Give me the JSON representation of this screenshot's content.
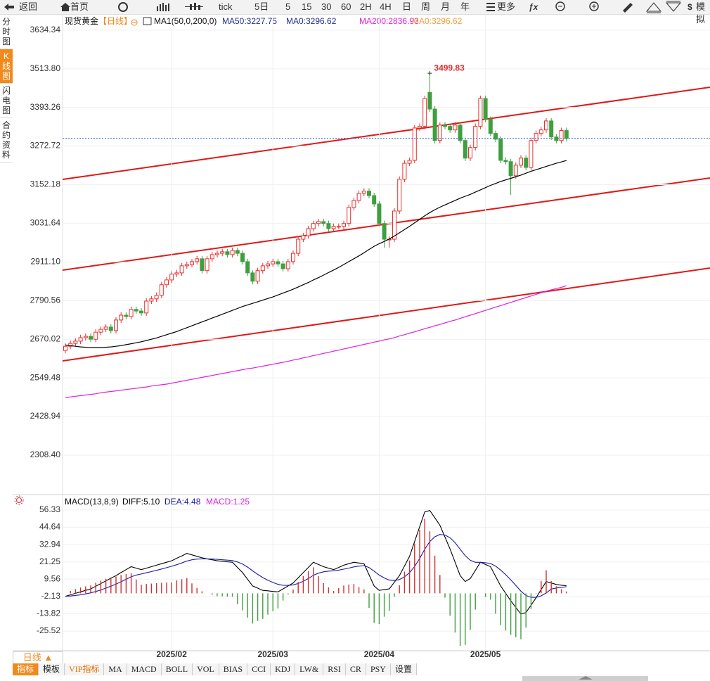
{
  "toolbar": {
    "items": [
      "返回",
      "首页",
      "tick",
      "5日",
      "5",
      "15",
      "30",
      "60",
      "2H",
      "4H",
      "日",
      "周",
      "月",
      "年",
      "更多",
      "模拟"
    ]
  },
  "side_tabs": [
    "分时图",
    "K线图",
    "闪电图",
    "合约资料"
  ],
  "period_button": "日线 ▲",
  "indicator_tabs": [
    "指标",
    "模板",
    "VIP指标",
    "MA",
    "MACD",
    "BOLL",
    "VOL",
    "BIAS",
    "CCI",
    "KDJ",
    "LW&",
    "RSI",
    "CR",
    "PSY",
    "设置"
  ],
  "chart_data": [
    {
      "type": "candlestick",
      "title": "现货黄金",
      "period": "【日线】",
      "indicator": "MA1(50,0,200,0)",
      "categories": [
        null,
        null,
        null,
        null,
        null,
        null,
        null,
        null,
        null,
        null,
        null,
        null,
        null,
        null,
        null,
        null,
        null,
        null,
        null,
        null,
        null,
        "2025/02",
        null,
        null,
        null,
        null,
        null,
        null,
        null,
        null,
        null,
        null,
        null,
        null,
        null,
        null,
        null,
        null,
        null,
        null,
        null,
        "2025/03",
        null,
        null,
        null,
        null,
        null,
        null,
        null,
        null,
        null,
        null,
        null,
        null,
        null,
        null,
        null,
        null,
        null,
        null,
        null,
        null,
        "2025/04",
        null,
        null,
        null,
        null,
        null,
        null,
        null,
        null,
        null,
        null,
        null,
        null,
        null,
        null,
        null,
        null,
        null,
        null,
        null,
        null,
        "2025/05",
        null,
        null,
        null,
        null,
        null,
        null,
        null,
        null,
        null,
        null,
        null,
        null,
        null,
        null,
        null,
        null
      ],
      "open": [
        2635,
        2648,
        2657,
        2664,
        2675,
        2679,
        2670,
        2692,
        2701,
        2708,
        2697,
        2730,
        2745,
        2741,
        2763,
        2758,
        2752,
        2789,
        2796,
        2807,
        2840,
        2855,
        2873,
        2877,
        2899,
        2903,
        2912,
        2921,
        2884,
        2921,
        2934,
        2938,
        2943,
        2934,
        2947,
        2938,
        2912,
        2877,
        2851,
        2884,
        2899,
        2905,
        2912,
        2905,
        2890,
        2912,
        2938,
        2982,
        2993,
        3015,
        3031,
        3037,
        3031,
        3015,
        3022,
        3022,
        3031,
        3081,
        3103,
        3125,
        3132,
        3118,
        3092,
        3031,
        2982,
        2982,
        3070,
        3169,
        3219,
        3228,
        3329,
        3334,
        3440,
        3388,
        3290,
        3338,
        3334,
        3323,
        3338,
        3290,
        3235,
        3268,
        3334,
        3421,
        3356,
        3312,
        3294,
        3228,
        3224,
        3180,
        3213,
        3235,
        3206,
        3290,
        3312,
        3323,
        3351,
        3301,
        3290,
        3321
      ],
      "high": [
        2657,
        2666,
        2673,
        2684,
        2688,
        2688,
        2701,
        2710,
        2717,
        2717,
        2739,
        2754,
        2754,
        2772,
        2772,
        2767,
        2798,
        2805,
        2816,
        2849,
        2864,
        2882,
        2886,
        2908,
        2912,
        2921,
        2930,
        2930,
        2930,
        2943,
        2947,
        2952,
        2952,
        2956,
        2956,
        2947,
        2921,
        2886,
        2893,
        2908,
        2914,
        2921,
        2921,
        2914,
        2921,
        2947,
        2991,
        3002,
        3024,
        3040,
        3046,
        3046,
        3040,
        3031,
        3031,
        3040,
        3090,
        3112,
        3134,
        3141,
        3141,
        3127,
        3101,
        3040,
        2991,
        3079,
        3178,
        3228,
        3237,
        3338,
        3343,
        3430,
        3499.83,
        3397,
        3347,
        3347,
        3343,
        3347,
        3347,
        3299,
        3277,
        3343,
        3430,
        3430,
        3365,
        3321,
        3303,
        3237,
        3233,
        3222,
        3244,
        3244,
        3299,
        3321,
        3332,
        3360,
        3360,
        3310,
        3330,
        3330
      ],
      "low": [
        2626,
        2639,
        2648,
        2655,
        2666,
        2661,
        2661,
        2683,
        2692,
        2688,
        2688,
        2721,
        2732,
        2732,
        2749,
        2743,
        2743,
        2780,
        2787,
        2798,
        2831,
        2846,
        2864,
        2868,
        2890,
        2894,
        2903,
        2875,
        2875,
        2912,
        2925,
        2929,
        2925,
        2925,
        2929,
        2903,
        2868,
        2842,
        2842,
        2875,
        2890,
        2896,
        2896,
        2881,
        2881,
        2903,
        2929,
        2973,
        2984,
        3006,
        3022,
        3022,
        3006,
        3006,
        3013,
        3013,
        3022,
        3072,
        3094,
        3116,
        3109,
        3083,
        3022,
        2956,
        2956,
        2973,
        3061,
        3160,
        3210,
        3219,
        3320,
        3325,
        3379,
        3281,
        3281,
        3325,
        3314,
        3314,
        3281,
        3226,
        3226,
        3259,
        3325,
        3347,
        3303,
        3285,
        3219,
        3215,
        3120,
        3171,
        3204,
        3197,
        3197,
        3281,
        3303,
        3314,
        3292,
        3281,
        3281,
        3287
      ],
      "close": [
        2648,
        2657,
        2664,
        2675,
        2679,
        2670,
        2692,
        2701,
        2708,
        2697,
        2730,
        2745,
        2741,
        2763,
        2758,
        2752,
        2789,
        2796,
        2807,
        2840,
        2855,
        2873,
        2877,
        2899,
        2903,
        2912,
        2921,
        2884,
        2921,
        2934,
        2938,
        2943,
        2934,
        2947,
        2938,
        2912,
        2877,
        2851,
        2884,
        2899,
        2905,
        2912,
        2905,
        2890,
        2912,
        2938,
        2982,
        2993,
        3015,
        3031,
        3037,
        3031,
        3015,
        3022,
        3022,
        3031,
        3081,
        3103,
        3125,
        3132,
        3118,
        3092,
        3031,
        2982,
        2982,
        3070,
        3169,
        3219,
        3228,
        3329,
        3334,
        3421,
        3388,
        3290,
        3338,
        3334,
        3323,
        3338,
        3290,
        3235,
        3268,
        3334,
        3421,
        3356,
        3312,
        3294,
        3228,
        3224,
        3180,
        3213,
        3235,
        3206,
        3290,
        3312,
        3323,
        3351,
        3301,
        3290,
        3321,
        3296.62
      ],
      "up_color": "#e8312f",
      "down_color": "#3f9f3f",
      "series": [
        {
          "name": "MA50:3227.75",
          "color": "#000000",
          "label_color": "#1f2f8f",
          "values": [
            2652,
            2650,
            2648,
            2646,
            2645,
            2644,
            2644,
            2644,
            2645,
            2646,
            2648,
            2650,
            2653,
            2656,
            2659,
            2662,
            2666,
            2670,
            2674,
            2679,
            2684,
            2689,
            2694,
            2700,
            2706,
            2712,
            2718,
            2724,
            2730,
            2736,
            2742,
            2748,
            2754,
            2760,
            2766,
            2772,
            2777,
            2782,
            2787,
            2792,
            2797,
            2802,
            2808,
            2814,
            2820,
            2826,
            2833,
            2840,
            2847,
            2855,
            2862,
            2870,
            2878,
            2886,
            2894,
            2903,
            2912,
            2921,
            2930,
            2940,
            2950,
            2960,
            2968,
            2975,
            2983,
            2992,
            3002,
            3012,
            3022,
            3033,
            3044,
            3055,
            3065,
            3074,
            3082,
            3089,
            3096,
            3103,
            3110,
            3116,
            3122,
            3129,
            3136,
            3143,
            3150,
            3156,
            3162,
            3167,
            3172,
            3177,
            3182,
            3188,
            3194,
            3199,
            3204,
            3209,
            3214,
            3219,
            3223,
            3227.75
          ]
        },
        {
          "name": "MA200:2836.93",
          "color": "#e020e0",
          "label_color": "#e020e0",
          "values": [
            2488,
            2490,
            2492,
            2494,
            2496,
            2498,
            2500,
            2503,
            2505,
            2507,
            2509,
            2511,
            2513,
            2515,
            2517,
            2519,
            2521,
            2524,
            2526,
            2528,
            2530,
            2533,
            2536,
            2539,
            2542,
            2545,
            2548,
            2551,
            2554,
            2557,
            2560,
            2563,
            2566,
            2569,
            2572,
            2575,
            2578,
            2580,
            2583,
            2586,
            2589,
            2592,
            2595,
            2598,
            2601,
            2605,
            2608,
            2612,
            2615,
            2619,
            2622,
            2626,
            2629,
            2633,
            2636,
            2640,
            2643,
            2647,
            2650,
            2654,
            2657,
            2661,
            2664,
            2668,
            2671,
            2675,
            2680,
            2684,
            2689,
            2693,
            2698,
            2703,
            2707,
            2712,
            2716,
            2721,
            2726,
            2730,
            2735,
            2740,
            2745,
            2750,
            2755,
            2760,
            2765,
            2770,
            2775,
            2780,
            2785,
            2790,
            2795,
            2800,
            2805,
            2810,
            2815,
            2820,
            2824,
            2828,
            2832,
            2836.93
          ]
        }
      ],
      "extra_labels": [
        {
          "text": "MA0:3296.62",
          "color": "#1f2f8f"
        },
        {
          "text": "MA0:3296.62",
          "color": "#f0a040"
        }
      ],
      "ylim": [
        2192,
        3680
      ],
      "yticks": [
        3634.34,
        {
          "value": 3513.8,
          "label": "3513.80"
        },
        3393.26,
        3272.72,
        3152.18,
        3031.64,
        {
          "value": 2911.1,
          "label": "2911.10"
        },
        2790.56,
        2670.02,
        2549.48,
        2428.94,
        {
          "value": 2308.4,
          "label": "2308.40"
        }
      ],
      "grid": true,
      "last_price_line": true
    },
    {
      "type": "macd",
      "title": "MACD(13,8,9)",
      "series": [
        {
          "name": "DIFF:5.10",
          "color": "#000000",
          "values": [
            -2,
            -1,
            0,
            1,
            2,
            3,
            4.8,
            6.6,
            8.4,
            10.2,
            12,
            14,
            16,
            18,
            17,
            16,
            17,
            18,
            19,
            20,
            21,
            22,
            23.7,
            25.3,
            27,
            26,
            25,
            24,
            23.3,
            22.7,
            22,
            21.7,
            21.3,
            21,
            17.5,
            14,
            9.5,
            5,
            3.5,
            2,
            1.7,
            1.3,
            1,
            3,
            5,
            7,
            10.5,
            14,
            17.5,
            21,
            19.5,
            18,
            17,
            16,
            17.5,
            19,
            20,
            21,
            20.5,
            20,
            12.5,
            5,
            2,
            2.5,
            3,
            7.5,
            12,
            18.5,
            25,
            35,
            45,
            55,
            56,
            51,
            46,
            38,
            30,
            21,
            12,
            8,
            10,
            15.5,
            21,
            19.5,
            18,
            11.5,
            5,
            0,
            -5,
            -9.5,
            -14,
            -13,
            -8,
            -3,
            2.5,
            8,
            7,
            6,
            5.5,
            5.1
          ]
        },
        {
          "name": "DEA:4.48",
          "color": "#1a1aa8",
          "values": [
            -2,
            -1.8,
            -1.44,
            -0.95,
            -0.36,
            0.31,
            1.21,
            2.29,
            3.51,
            4.85,
            6.28,
            7.82,
            9.46,
            11.17,
            12.34,
            13.07,
            13.86,
            14.69,
            15.55,
            16.44,
            17.35,
            18.28,
            19.36,
            20.55,
            21.84,
            22.67,
            23.14,
            23.31,
            23.31,
            23.19,
            22.95,
            22.7,
            22.42,
            22.14,
            21.21,
            19.77,
            17.72,
            15.18,
            12.84,
            10.67,
            8.88,
            7.36,
            6.09,
            5.47,
            5.38,
            5.7,
            6.66,
            8.13,
            10,
            12.2,
            13.66,
            14.53,
            15.02,
            15.22,
            15.68,
            16.34,
            17.07,
            17.86,
            18.39,
            18.71,
            17.47,
            14.98,
            12.38,
            10.4,
            8.92,
            8.64,
            9.31,
            11.15,
            13.92,
            18.14,
            23.51,
            29.81,
            35.05,
            38.24,
            39.79,
            39.43,
            37.54,
            34.23,
            29.78,
            25.43,
            22.34,
            20.98,
            20.98,
            20.68,
            20.15,
            18.42,
            15.73,
            12.59,
            9.07,
            5.36,
            1.49,
            -1.41,
            -2.73,
            -2.78,
            -1.73,
            0.22,
            2.9,
            3.6,
            4.1,
            4.48
          ]
        },
        {
          "name": "MACD:1.25",
          "color": "#e020e0",
          "type": "bar",
          "up_color": "#d03030",
          "down_color": "#3f9f3f",
          "values": [
            0,
            1.6,
            2.9,
            3.9,
            4.7,
            5.4,
            7.2,
            8.6,
            9.8,
            10.7,
            11.4,
            12.4,
            13.1,
            13.7,
            9.3,
            5.9,
            6.3,
            6.6,
            6.9,
            7.1,
            7.3,
            7.4,
            8.7,
            9.5,
            10.3,
            6.7,
            3.7,
            1.4,
            0,
            -1,
            -1.9,
            -2,
            -2.2,
            -2.3,
            -7.4,
            -11.5,
            -16.4,
            -20.4,
            -18.7,
            -17.3,
            -14.4,
            -12.1,
            -10.2,
            -4.9,
            -0.8,
            2.6,
            7.7,
            11.7,
            15,
            17.6,
            11.7,
            6.9,
            4,
            1.6,
            3.6,
            5.3,
            5.9,
            6.3,
            4.2,
            2.6,
            -9.9,
            -20,
            -20.8,
            -15.8,
            -11.8,
            -2.3,
            5.4,
            14.7,
            22.2,
            33.7,
            43,
            50.4,
            41.9,
            25.5,
            12.4,
            -2.9,
            -15.1,
            -26.5,
            -35.6,
            -34.9,
            -24.7,
            -11,
            0,
            -2.4,
            -4.3,
            -13.8,
            -21.5,
            -25.2,
            -28.1,
            -29.7,
            -31,
            -23.2,
            -10.5,
            -0.4,
            8.5,
            15.6,
            8.2,
            4.8,
            2.8,
            1.25
          ]
        }
      ],
      "ylim": [
        -38.8,
        65.8
      ],
      "yticks": [
        56.33,
        44.64,
        32.94,
        21.25,
        9.56,
        -2.13,
        -13.82,
        -25.52
      ],
      "grid": true
    }
  ]
}
